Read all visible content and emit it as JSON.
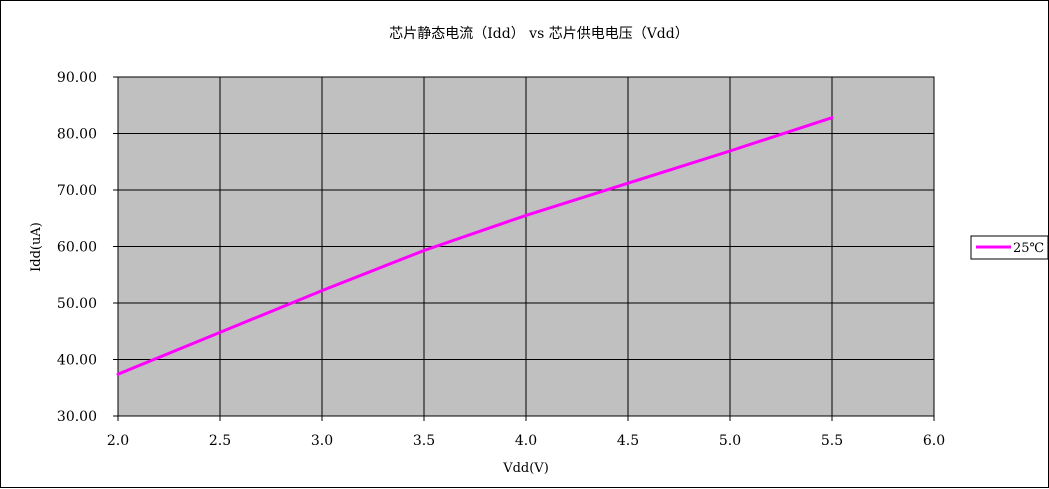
{
  "chart_data": {
    "type": "line",
    "title": "芯片静态电流（Idd） vs 芯片供电电压（Vdd）",
    "xlabel": "Vdd(V)",
    "ylabel": "Idd(uA)",
    "xlim": [
      2.0,
      6.0
    ],
    "ylim": [
      30.0,
      90.0
    ],
    "x_ticks": [
      "2.0",
      "2.5",
      "3.0",
      "3.5",
      "4.0",
      "4.5",
      "5.0",
      "5.5",
      "6.0"
    ],
    "y_ticks": [
      "30.00",
      "40.00",
      "50.00",
      "60.00",
      "70.00",
      "80.00",
      "90.00"
    ],
    "grid": true,
    "plot_background": "#c0c0c0",
    "legend_position": "right",
    "series": [
      {
        "name": "25℃",
        "color": "#ff00ff",
        "x": [
          2.0,
          2.5,
          3.0,
          3.5,
          4.0,
          4.5,
          5.0,
          5.5
        ],
        "y": [
          37.4,
          44.8,
          52.2,
          59.3,
          65.5,
          71.2,
          76.9,
          82.8
        ]
      }
    ]
  }
}
